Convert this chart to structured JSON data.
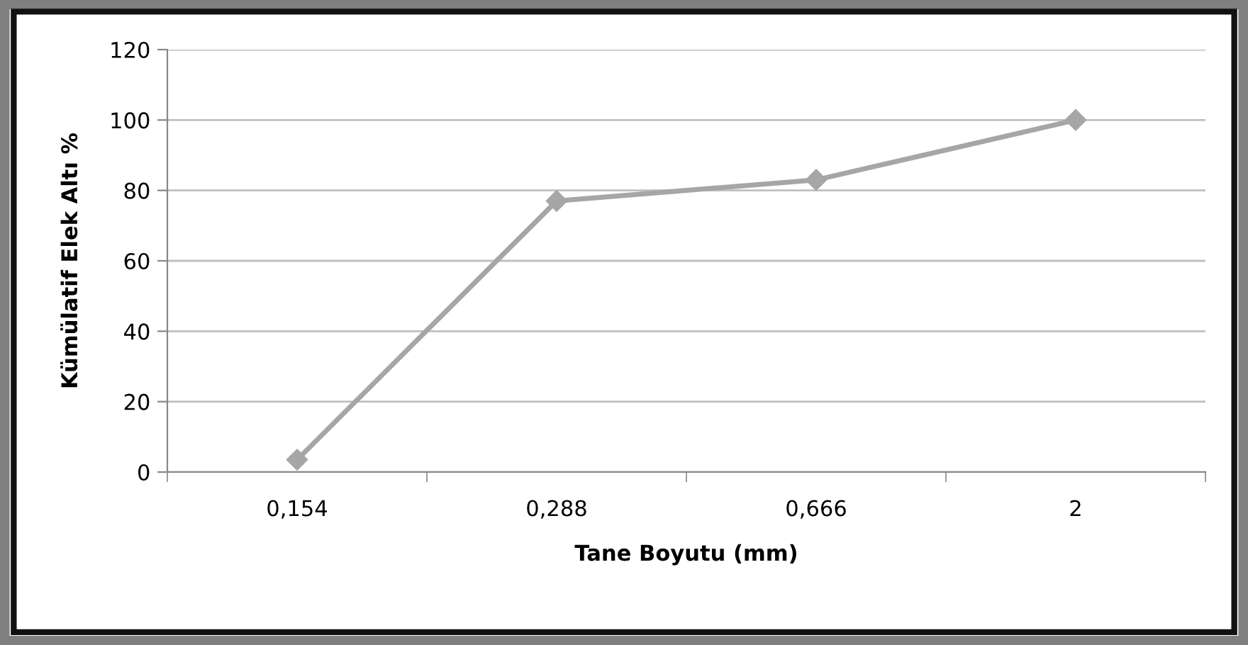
{
  "chart_data": {
    "type": "line",
    "xlabel": "Tane Boyutu (mm)",
    "ylabel": "Kümülatif Elek Altı %",
    "categories": [
      "0,154",
      "0,288",
      "0,666",
      "2"
    ],
    "series": [
      {
        "color": "#a6a6a6",
        "values": [
          3.5,
          77,
          83,
          100
        ]
      }
    ],
    "ylim": [
      0,
      120
    ],
    "yticks": [
      0,
      20,
      40,
      60,
      80,
      100,
      120
    ],
    "grid": "y",
    "marker": "diamond",
    "line_style": "solid"
  }
}
